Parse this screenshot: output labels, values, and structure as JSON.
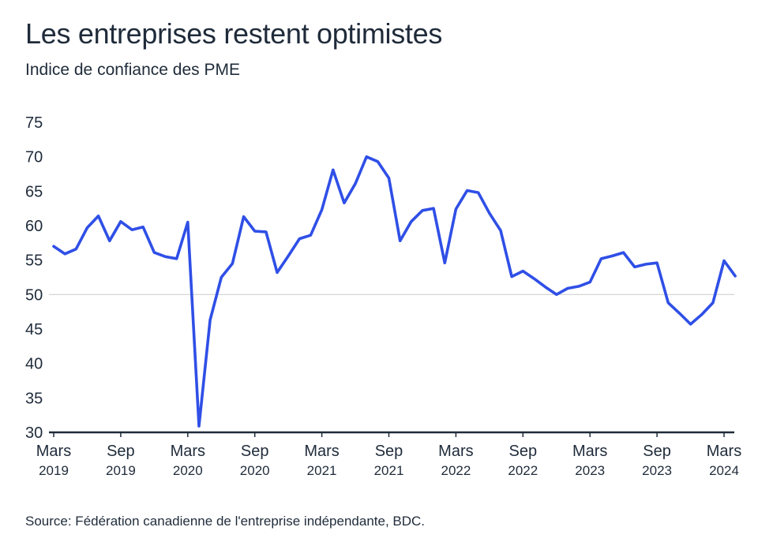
{
  "header": {
    "title": "Les entreprises restent optimistes",
    "subtitle": "Indice de confiance des PME"
  },
  "footer": {
    "source": "Source: Fédération canadienne de l'entreprise indépendante, BDC."
  },
  "colors": {
    "line": "#2f4fe6",
    "axis": "#1f2b3a",
    "reference": "#d0d0d0"
  },
  "chart_data": {
    "type": "line",
    "title": "Les entreprises restent optimistes",
    "subtitle": "Indice de confiance des PME",
    "xlabel": "",
    "ylabel": "",
    "ylim": [
      30,
      75
    ],
    "yticks": [
      30,
      35,
      40,
      45,
      50,
      55,
      60,
      65,
      70,
      75
    ],
    "reference_line": 50,
    "grid": false,
    "x_start": "2019-03",
    "x_ticks": [
      {
        "index": 0,
        "month": "Mars",
        "year": "2019"
      },
      {
        "index": 6,
        "month": "Sep",
        "year": "2019"
      },
      {
        "index": 12,
        "month": "Mars",
        "year": "2020"
      },
      {
        "index": 18,
        "month": "Sep",
        "year": "2020"
      },
      {
        "index": 24,
        "month": "Mars",
        "year": "2021"
      },
      {
        "index": 30,
        "month": "Sep",
        "year": "2021"
      },
      {
        "index": 36,
        "month": "Mars",
        "year": "2022"
      },
      {
        "index": 42,
        "month": "Sep",
        "year": "2022"
      },
      {
        "index": 48,
        "month": "Mars",
        "year": "2023"
      },
      {
        "index": 54,
        "month": "Sep",
        "year": "2023"
      },
      {
        "index": 60,
        "month": "Mars",
        "year": "2024"
      }
    ],
    "series": [
      {
        "name": "Indice de confiance des PME",
        "values": [
          57.0,
          55.9,
          56.6,
          59.7,
          61.4,
          57.8,
          60.6,
          59.4,
          59.8,
          56.1,
          55.5,
          55.2,
          60.5,
          30.9,
          46.3,
          52.5,
          54.5,
          61.3,
          59.2,
          59.1,
          53.2,
          55.6,
          58.1,
          58.6,
          62.3,
          68.1,
          63.3,
          66.1,
          70.0,
          69.3,
          66.9,
          57.8,
          60.6,
          62.2,
          62.5,
          54.6,
          62.4,
          65.1,
          64.8,
          61.8,
          59.3,
          52.6,
          53.4,
          52.3,
          51.1,
          50.0,
          50.9,
          51.2,
          51.8,
          55.2,
          55.6,
          56.1,
          54.0,
          54.4,
          54.6,
          48.8,
          47.3,
          45.7,
          47.1,
          48.8,
          54.9,
          52.7
        ]
      }
    ]
  }
}
